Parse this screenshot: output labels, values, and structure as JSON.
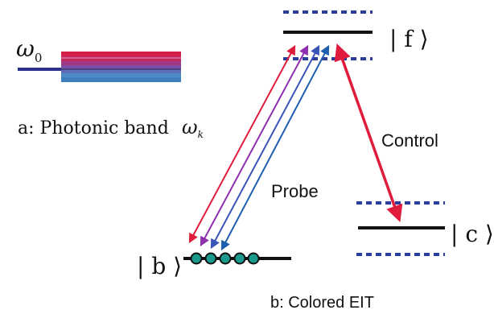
{
  "panel_a": {
    "symbol_omega0_base": "ω",
    "symbol_omega0_sub": "0",
    "caption_text": "a: Photonic band",
    "caption_symbol_base": "ω",
    "caption_symbol_sub": "k",
    "colors": {
      "line_omega0": "#2b2f8e",
      "band_layers": [
        "#d42048",
        "#c2285f",
        "#a03a86",
        "#7a4ea3",
        "#5f6cb6",
        "#4f8ac8",
        "#3f7fc0"
      ]
    }
  },
  "panel_b": {
    "label_f": "| f ⟩",
    "label_c": "| c ⟩",
    "label_b": "| b ⟩",
    "label_probe": "Probe",
    "label_control": "Control",
    "caption": "b: Colored EIT",
    "colors": {
      "level_line": "#111111",
      "dotted_band": "#2a3d9c",
      "control_arrow": "#e01c3c",
      "probe_arrows": [
        "#e01c3c",
        "#8e2fb0",
        "#3a55b8",
        "#1f5fb0"
      ],
      "atom_fill": "#1a9a8c"
    }
  }
}
